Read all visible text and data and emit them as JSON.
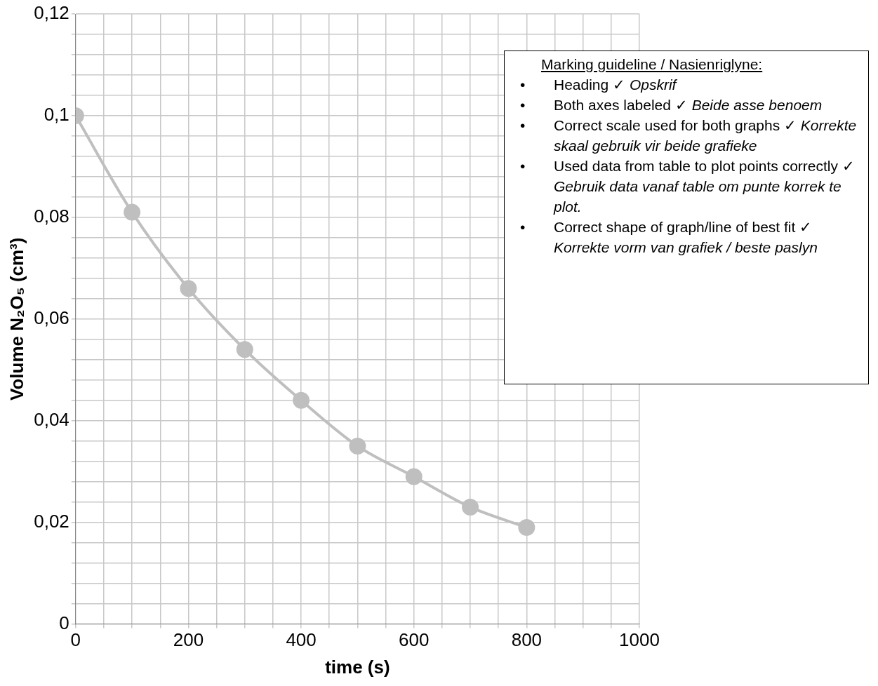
{
  "chart_data": {
    "type": "line",
    "xlabel": "time (s)",
    "ylabel": "Volume N₂O₅ (cm³)",
    "x": [
      0,
      100,
      200,
      300,
      400,
      500,
      600,
      700,
      800
    ],
    "series": [
      {
        "color": "#bfbfbf",
        "values": [
          0.1,
          0.081,
          0.066,
          0.054,
          0.044,
          0.035,
          0.029,
          0.023,
          0.019
        ]
      }
    ],
    "marker": "circle",
    "grid": true,
    "legend": false,
    "xlim": [
      0,
      1000
    ],
    "xticks": [
      0,
      {
        "value": 50,
        "label": null
      },
      {
        "value": 100,
        "label": null
      },
      {
        "value": 150,
        "label": null
      },
      200,
      {
        "value": 250,
        "label": null
      },
      {
        "value": 300,
        "label": null
      },
      {
        "value": 350,
        "label": null
      },
      400,
      {
        "value": 450,
        "label": null
      },
      {
        "value": 500,
        "label": null
      },
      {
        "value": 550,
        "label": null
      },
      600,
      {
        "value": 650,
        "label": null
      },
      {
        "value": 700,
        "label": null
      },
      {
        "value": 750,
        "label": null
      },
      800,
      {
        "value": 850,
        "label": null
      },
      {
        "value": 900,
        "label": null
      },
      {
        "value": 950,
        "label": null
      },
      1000
    ],
    "ylim": [
      0,
      0.12
    ],
    "yticks": [
      {
        "value": 0,
        "label": "0"
      },
      {
        "value": 0.004,
        "label": null
      },
      {
        "value": 0.008,
        "label": null
      },
      {
        "value": 0.012,
        "label": null
      },
      {
        "value": 0.016,
        "label": null
      },
      {
        "value": 0.02,
        "label": "0,02"
      },
      {
        "value": 0.024,
        "label": null
      },
      {
        "value": 0.028,
        "label": null
      },
      {
        "value": 0.032,
        "label": null
      },
      {
        "value": 0.036,
        "label": null
      },
      {
        "value": 0.04,
        "label": "0,04"
      },
      {
        "value": 0.044,
        "label": null
      },
      {
        "value": 0.048,
        "label": null
      },
      {
        "value": 0.052,
        "label": null
      },
      {
        "value": 0.056,
        "label": null
      },
      {
        "value": 0.06,
        "label": "0,06"
      },
      {
        "value": 0.064,
        "label": null
      },
      {
        "value": 0.068,
        "label": null
      },
      {
        "value": 0.072,
        "label": null
      },
      {
        "value": 0.076,
        "label": null
      },
      {
        "value": 0.08,
        "label": "0,08"
      },
      {
        "value": 0.084,
        "label": null
      },
      {
        "value": 0.088,
        "label": null
      },
      {
        "value": 0.092,
        "label": null
      },
      {
        "value": 0.096,
        "label": null
      },
      {
        "value": 0.1,
        "label": "0,1"
      },
      {
        "value": 0.104,
        "label": null
      },
      {
        "value": 0.108,
        "label": null
      },
      {
        "value": 0.112,
        "label": null
      },
      {
        "value": 0.116,
        "label": null
      },
      {
        "value": 0.12,
        "label": "0,12"
      }
    ],
    "annotations": [
      "Marking guideline / Nasienriglyne:",
      "• Heading ✓ Opskrif",
      "• Both axes labeled ✓ Beide asse benoem",
      "• Correct scale used for both graphs ✓ Korrekte skaal gebruik vir beide grafieke",
      "• Used data from table to plot points correctly ✓ Gebruik data vanaf table om punte korrek te plot.",
      "• Correct shape of graph/line of best fit ✓ Korrekte vorm van grafiek / beste paslyn"
    ]
  }
}
